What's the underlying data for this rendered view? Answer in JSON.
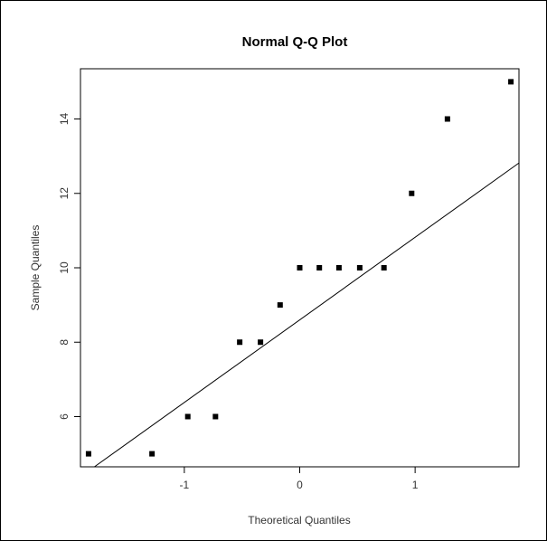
{
  "chart_data": {
    "type": "scatter",
    "title": "Normal Q-Q Plot",
    "xlabel": "Theoretical Quantiles",
    "ylabel": "Sample Quantiles",
    "xlim": [
      -1.9,
      1.9
    ],
    "ylim": [
      4.65,
      15.35
    ],
    "x_ticks": [
      -1,
      0,
      1
    ],
    "y_ticks": [
      6,
      8,
      10,
      12,
      14
    ],
    "grid": false,
    "points": [
      {
        "x": -1.83,
        "y": 5
      },
      {
        "x": -1.28,
        "y": 5
      },
      {
        "x": -0.97,
        "y": 6
      },
      {
        "x": -0.73,
        "y": 6
      },
      {
        "x": -0.52,
        "y": 8
      },
      {
        "x": -0.34,
        "y": 8
      },
      {
        "x": -0.17,
        "y": 9
      },
      {
        "x": 0.0,
        "y": 10
      },
      {
        "x": 0.17,
        "y": 10
      },
      {
        "x": 0.34,
        "y": 10
      },
      {
        "x": 0.52,
        "y": 10
      },
      {
        "x": 0.73,
        "y": 10
      },
      {
        "x": 0.97,
        "y": 12
      },
      {
        "x": 1.28,
        "y": 14
      },
      {
        "x": 1.83,
        "y": 15
      }
    ],
    "reference_line": {
      "intercept": 8.6,
      "slope": 2.22
    },
    "colors": {
      "points": "#000000",
      "line": "#000000",
      "axes": "#000000"
    }
  }
}
